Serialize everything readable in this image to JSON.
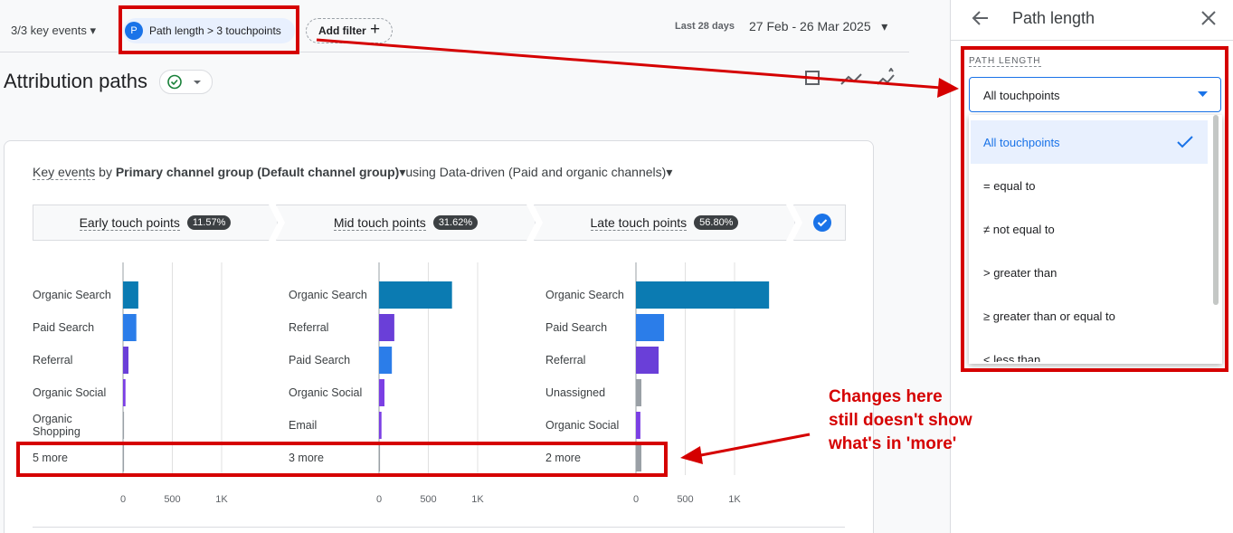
{
  "toolbar": {
    "key_events": "3/3 key events",
    "filter_chip_icon": "P",
    "filter_chip": "Path length > 3 touchpoints",
    "add_filter": "Add filter",
    "date_label": "Last 28 days",
    "date_range": "27 Feb - 26 Mar 2025"
  },
  "title": "Attribution paths",
  "card": {
    "metric": "Key events",
    "by": "by",
    "dimension": "Primary channel group (Default channel group)",
    "using": "using Data-driven (Paid and organic channels)"
  },
  "stages": [
    {
      "name": "Early touch points",
      "share": "11.57%"
    },
    {
      "name": "Mid touch points",
      "share": "31.62%"
    },
    {
      "name": "Late touch points",
      "share": "56.80%"
    }
  ],
  "charts": [
    {
      "xlim": [
        0,
        1400
      ],
      "xticks": [
        0,
        500,
        {
          "value": 1000,
          "label": "1K"
        }
      ],
      "bars": [
        {
          "label": "Organic Search",
          "value": 155,
          "color": "#0b7bb2"
        },
        {
          "label": "Paid Search",
          "value": 135,
          "color": "#2b7de9"
        },
        {
          "label": "Referral",
          "value": 55,
          "color": "#6a3fd8"
        },
        {
          "label": "Organic Social",
          "value": 25,
          "color": "#7b3fe4"
        },
        {
          "label": "Organic Shopping",
          "value": 10,
          "color": "#9aa0a6"
        },
        {
          "label": "5 more",
          "value": 10,
          "color": "#9aa0a6"
        }
      ]
    },
    {
      "xlim": [
        0,
        1400
      ],
      "xticks": [
        0,
        500,
        {
          "value": 1000,
          "label": "1K"
        }
      ],
      "bars": [
        {
          "label": "Organic Search",
          "value": 740,
          "color": "#0b7bb2"
        },
        {
          "label": "Referral",
          "value": 155,
          "color": "#6a3fd8"
        },
        {
          "label": "Paid Search",
          "value": 130,
          "color": "#2b7de9"
        },
        {
          "label": "Organic Social",
          "value": 55,
          "color": "#7b3fe4"
        },
        {
          "label": "Email",
          "value": 25,
          "color": "#7b3fe4"
        },
        {
          "label": "3 more",
          "value": 10,
          "color": "#9aa0a6"
        }
      ]
    },
    {
      "xlim": [
        0,
        1400
      ],
      "xticks": [
        0,
        500,
        {
          "value": 1000,
          "label": "1K"
        }
      ],
      "bars": [
        {
          "label": "Organic Search",
          "value": 1350,
          "color": "#0b7bb2"
        },
        {
          "label": "Paid Search",
          "value": 285,
          "color": "#2b7de9"
        },
        {
          "label": "Referral",
          "value": 230,
          "color": "#6a3fd8"
        },
        {
          "label": "Unassigned",
          "value": 55,
          "color": "#9aa0a6"
        },
        {
          "label": "Organic Social",
          "value": 45,
          "color": "#7b3fe4"
        },
        {
          "label": "2 more",
          "value": 55,
          "color": "#9aa0a6"
        }
      ]
    }
  ],
  "annotation": [
    "Changes here",
    "still doesn't show",
    "what's in 'more'"
  ],
  "panel": {
    "title": "Path length",
    "section_label": "PATH LENGTH",
    "selected": "All touchpoints",
    "options": [
      "All touchpoints",
      "= equal to",
      "≠ not equal to",
      "> greater than",
      "≥ greater than or equal to",
      "< less than"
    ]
  }
}
